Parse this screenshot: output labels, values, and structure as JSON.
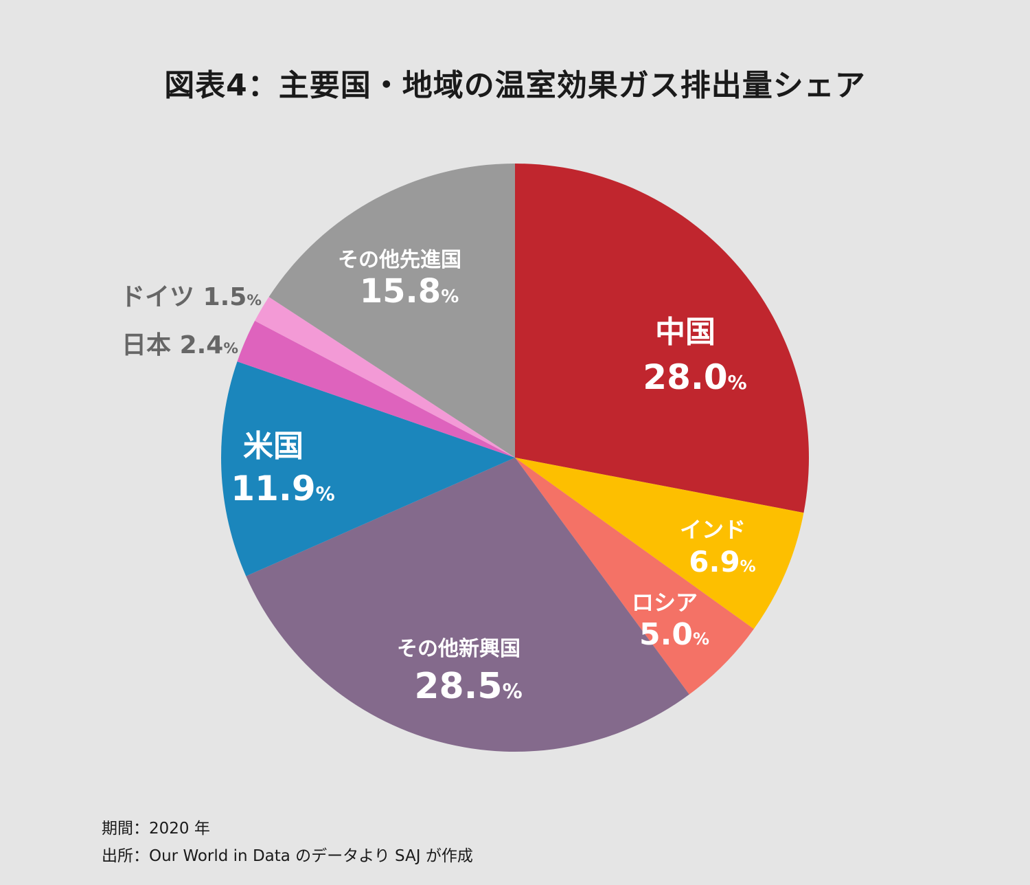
{
  "chart_data": {
    "type": "pie",
    "title": "図表4：主要国・地域の温室効果ガス排出量シェア",
    "slices": [
      {
        "label": "中国",
        "value": 28.0,
        "value_label": "28.0",
        "unit": "%",
        "color": "#c0262e",
        "label_color": "#ffffff"
      },
      {
        "label": "インド",
        "value": 6.9,
        "value_label": "6.9",
        "unit": "%",
        "color": "#fdbf00",
        "label_color": "#ffffff"
      },
      {
        "label": "ロシア",
        "value": 5.0,
        "value_label": "5.0",
        "unit": "%",
        "color": "#f47266",
        "label_color": "#ffffff"
      },
      {
        "label": "その他新興国",
        "value": 28.5,
        "value_label": "28.5",
        "unit": "%",
        "color": "#846a8c",
        "label_color": "#ffffff"
      },
      {
        "label": "米国",
        "value": 11.9,
        "value_label": "11.9",
        "unit": "%",
        "color": "#1b86bc",
        "label_color": "#ffffff"
      },
      {
        "label": "日本",
        "value": 2.4,
        "value_label": "2.4",
        "unit": "%",
        "color": "#de63bd",
        "label_color": "#666666"
      },
      {
        "label": "ドイツ",
        "value": 1.5,
        "value_label": "1.5",
        "unit": "%",
        "color": "#f39ad6",
        "label_color": "#666666"
      },
      {
        "label": "その他先進国",
        "value": 15.8,
        "value_label": "15.8",
        "unit": "%",
        "color": "#9a9a9a",
        "label_color": "#ffffff"
      }
    ],
    "start_angle": "12 o'clock",
    "direction": "clockwise"
  },
  "notes": {
    "period": "期間：2020 年",
    "source": "出所：Our World in Data のデータより SAJ が作成"
  }
}
